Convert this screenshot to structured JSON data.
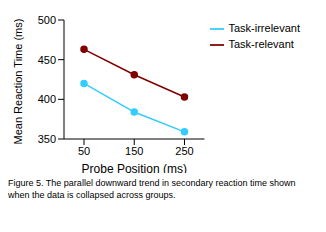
{
  "chart_data": {
    "type": "line",
    "caption": "Figure 5.  The parallel downward trend in secondary reaction time shown when the data is collapsed across groups.",
    "x_label": "Probe Position (ms)",
    "y_label": "Mean Reaction Time (ms)",
    "categories": [
      "50",
      "150",
      "250"
    ],
    "series": [
      {
        "name": "Task-relevant",
        "color": "#800000",
        "marker": "circle",
        "values": [
          463,
          431,
          403
        ]
      },
      {
        "name": "Task-irrelevant",
        "color": "#33ccff",
        "marker": "circle",
        "values": [
          420,
          384,
          359
        ]
      }
    ],
    "ylim": [
      350,
      500
    ],
    "yticks": [
      350,
      400,
      450,
      500
    ],
    "legend": "right",
    "grid": false
  }
}
